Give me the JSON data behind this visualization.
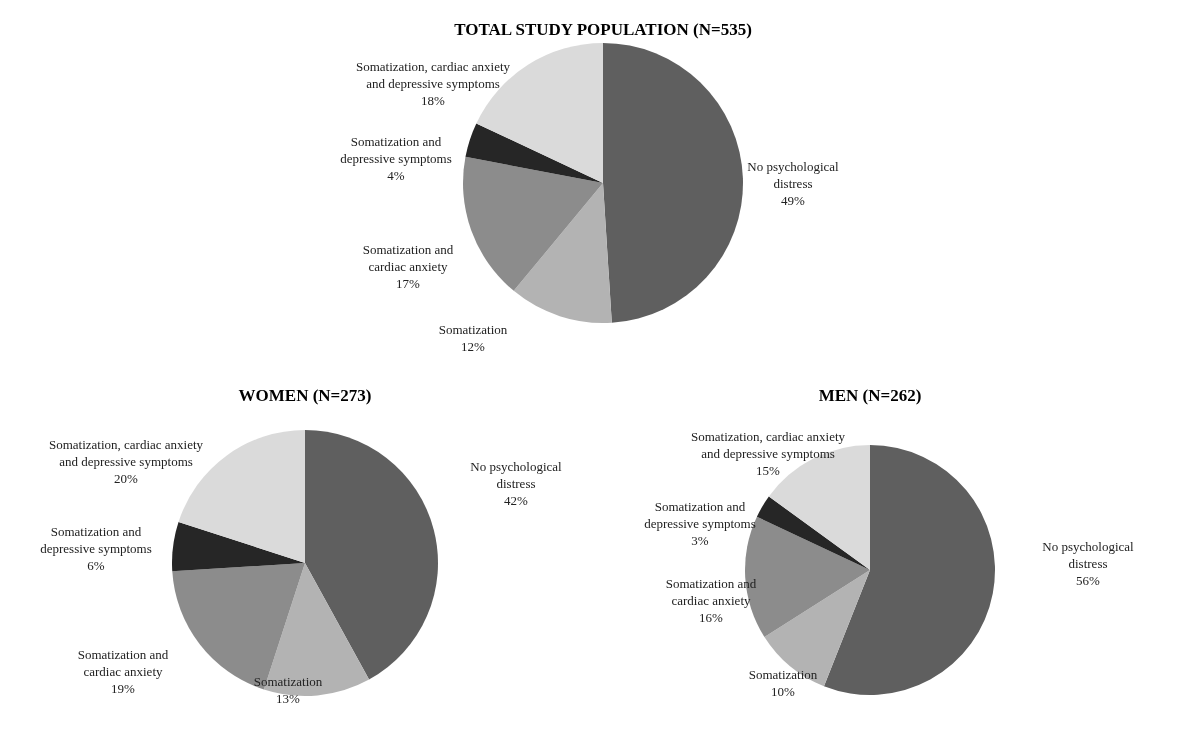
{
  "chart_data": [
    {
      "type": "pie",
      "title": "TOTAL STUDY POPULATION (N=535)",
      "categories": [
        "No psychological distress",
        "Somatization",
        "Somatization and cardiac anxiety",
        "Somatization and depressive symptoms",
        "Somatization, cardiac anxiety and depressive symptoms"
      ],
      "values": [
        49,
        12,
        17,
        4,
        18
      ],
      "value_labels": [
        "49%",
        "12%",
        "17%",
        "4%",
        "18%"
      ],
      "colors": [
        "#5f5f5f",
        "#b3b3b3",
        "#8c8c8c",
        "#262626",
        "#dadada"
      ],
      "legend": false
    },
    {
      "type": "pie",
      "title": "WOMEN (N=273)",
      "categories": [
        "No psychological distress",
        "Somatization",
        "Somatization and cardiac anxiety",
        "Somatization and depressive symptoms",
        "Somatization, cardiac anxiety and depressive symptoms"
      ],
      "values": [
        42,
        13,
        19,
        6,
        20
      ],
      "value_labels": [
        "42%",
        "13%",
        "19%",
        "6%",
        "20%"
      ],
      "colors": [
        "#5f5f5f",
        "#b3b3b3",
        "#8c8c8c",
        "#262626",
        "#dadada"
      ],
      "legend": false
    },
    {
      "type": "pie",
      "title": "MEN (N=262)",
      "categories": [
        "No psychological distress",
        "Somatization",
        "Somatization and cardiac anxiety",
        "Somatization and depressive symptoms",
        "Somatization, cardiac anxiety and depressive symptoms"
      ],
      "values": [
        56,
        10,
        16,
        3,
        15
      ],
      "value_labels": [
        "56%",
        "10%",
        "16%",
        "3%",
        "15%"
      ],
      "colors": [
        "#5f5f5f",
        "#b3b3b3",
        "#8c8c8c",
        "#262626",
        "#dadada"
      ],
      "legend": false
    }
  ]
}
